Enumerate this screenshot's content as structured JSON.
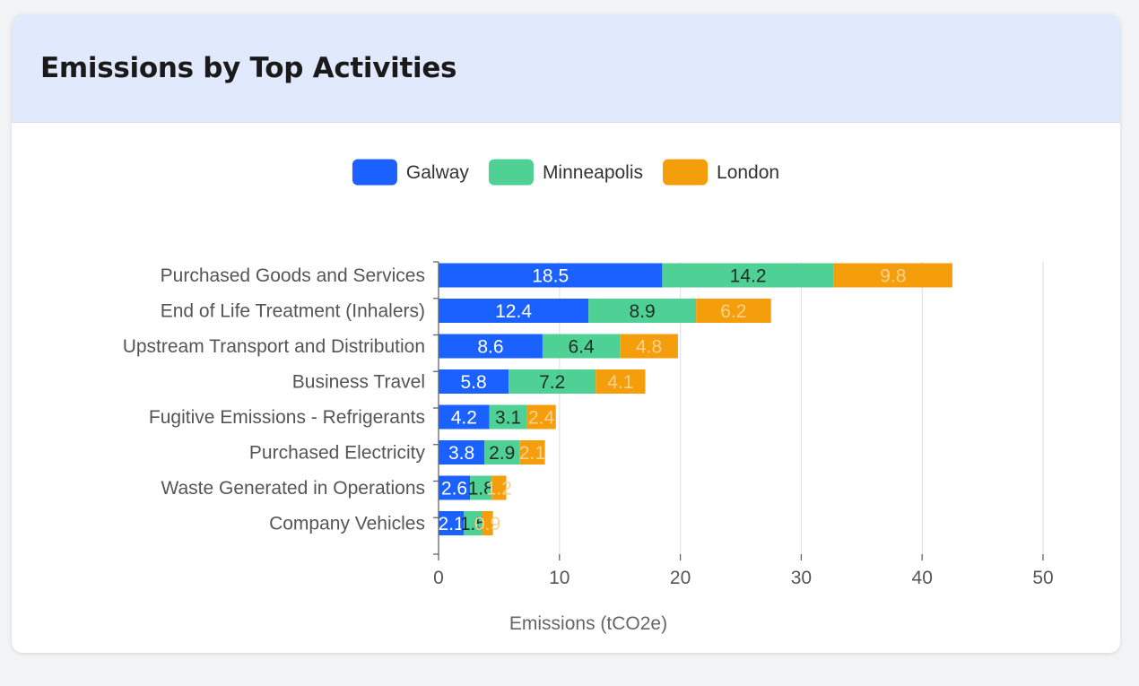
{
  "card": {
    "title": "Emissions by Top Activities"
  },
  "colors": {
    "galway": "#1b61ff",
    "minneapolis": "#4fd196",
    "london": "#f59e0b"
  },
  "chart_data": {
    "type": "bar",
    "orientation": "horizontal",
    "stacked": true,
    "categories": [
      "Purchased Goods and Services",
      "End of Life Treatment (Inhalers)",
      "Upstream Transport and Distribution",
      "Business Travel",
      "Fugitive Emissions - Refrigerants",
      "Purchased Electricity",
      "Waste Generated in Operations",
      "Company Vehicles"
    ],
    "series": [
      {
        "name": "Galway",
        "color": "#1b61ff",
        "label_color": "#ffffff",
        "values": [
          18.5,
          12.4,
          8.6,
          5.8,
          4.2,
          3.8,
          2.6,
          2.1
        ]
      },
      {
        "name": "Minneapolis",
        "color": "#4fd196",
        "label_color": "#1f2d27",
        "values": [
          14.2,
          8.9,
          6.4,
          7.2,
          3.1,
          2.9,
          1.8,
          1.5
        ]
      },
      {
        "name": "London",
        "color": "#f59e0b",
        "label_color": "#f7d28f",
        "values": [
          9.8,
          6.2,
          4.8,
          4.1,
          2.4,
          2.1,
          1.2,
          0.9
        ]
      }
    ],
    "title": "",
    "xlabel": "Emissions (tCO2e)",
    "ylabel": "",
    "xlim": [
      0,
      50
    ],
    "xticks": [
      0,
      10,
      20,
      30,
      40,
      50
    ],
    "grid": "vertical",
    "legend_position": "top-center"
  }
}
